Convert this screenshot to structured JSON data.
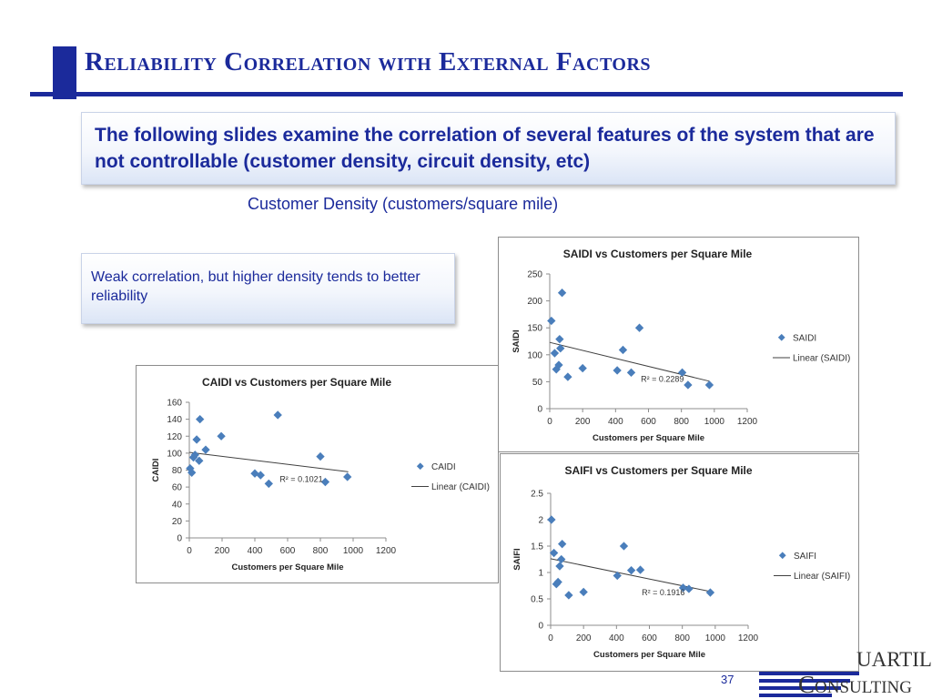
{
  "slide": {
    "title": "Reliability Correlation with External Factors",
    "intro": "The following slides examine the correlation of several features of the system that are not controllable (customer density, circuit density, etc)",
    "subtitle": "Customer Density (customers/square mile)",
    "note": "Weak correlation, but higher density tends to better reliability",
    "page_number": "37",
    "logo_line1": "UARTILE",
    "logo_line2": "Consulting",
    "colors": {
      "accent": "#1b2a9b",
      "marker": "#4a7ebb",
      "trend": "#404040"
    }
  },
  "chart_data": [
    {
      "type": "scatter",
      "title": "CAIDI vs Customers per Square Mile",
      "xlabel": "Customers per Square Mile",
      "ylabel": "CAIDI",
      "xlim": [
        0,
        1200
      ],
      "ylim": [
        0,
        160
      ],
      "xticks": [
        0,
        200,
        400,
        600,
        800,
        1000,
        1200
      ],
      "yticks": [
        0,
        20,
        40,
        60,
        80,
        100,
        120,
        140,
        160
      ],
      "grid": false,
      "legend": "right",
      "series": [
        {
          "name": "CAIDI",
          "x": [
            5,
            15,
            25,
            35,
            45,
            60,
            65,
            100,
            195,
            400,
            435,
            485,
            540,
            800,
            830,
            965
          ],
          "y": [
            82,
            77,
            95,
            98,
            116,
            91,
            140,
            104,
            120,
            76,
            74,
            64,
            145,
            96,
            66,
            72
          ]
        }
      ],
      "trendline": {
        "name": "Linear (CAIDI)",
        "x": [
          0,
          970
        ],
        "y": [
          101,
          78
        ]
      },
      "r2_label": "R² = 0.1021"
    },
    {
      "type": "scatter",
      "title": "SAIDI vs Customers per Square Mile",
      "xlabel": "Customers per Square Mile",
      "ylabel": "SAIDI",
      "xlim": [
        0,
        1200
      ],
      "ylim": [
        0,
        250
      ],
      "xticks": [
        0,
        200,
        400,
        600,
        800,
        1000,
        1200
      ],
      "yticks": [
        0,
        50,
        100,
        150,
        200,
        250
      ],
      "grid": false,
      "legend": "right",
      "series": [
        {
          "name": "SAIDI",
          "x": [
            10,
            30,
            40,
            55,
            60,
            65,
            75,
            110,
            200,
            410,
            445,
            495,
            545,
            805,
            840,
            970
          ],
          "y": [
            163,
            103,
            73,
            81,
            129,
            112,
            215,
            59,
            75,
            71,
            109,
            67,
            150,
            67,
            44,
            44
          ]
        }
      ],
      "trendline": {
        "name": "Linear (SAIDI)",
        "x": [
          0,
          970
        ],
        "y": [
          123,
          51
        ]
      },
      "r2_label": "R² = 0.2289"
    },
    {
      "type": "scatter",
      "title": "SAIFI vs Customers per Square Mile",
      "xlabel": "Customers per Square Mile",
      "ylabel": "SAIFI",
      "xlim": [
        0,
        1200
      ],
      "ylim": [
        0,
        2.5
      ],
      "xticks": [
        0,
        200,
        400,
        600,
        800,
        1000,
        1200
      ],
      "yticks": [
        0,
        0.5,
        1,
        1.5,
        2,
        2.5
      ],
      "grid": false,
      "legend": "right",
      "series": [
        {
          "name": "SAIFI",
          "x": [
            5,
            20,
            35,
            45,
            55,
            65,
            70,
            110,
            200,
            405,
            445,
            490,
            545,
            805,
            840,
            970
          ],
          "y": [
            2.0,
            1.37,
            0.78,
            0.82,
            1.12,
            1.25,
            1.54,
            0.57,
            0.63,
            0.94,
            1.5,
            1.04,
            1.05,
            0.71,
            0.69,
            0.62
          ]
        }
      ],
      "trendline": {
        "name": "Linear (SAIFI)",
        "x": [
          0,
          970
        ],
        "y": [
          1.26,
          0.64
        ]
      },
      "r2_label": "R² = 0.1916"
    }
  ]
}
